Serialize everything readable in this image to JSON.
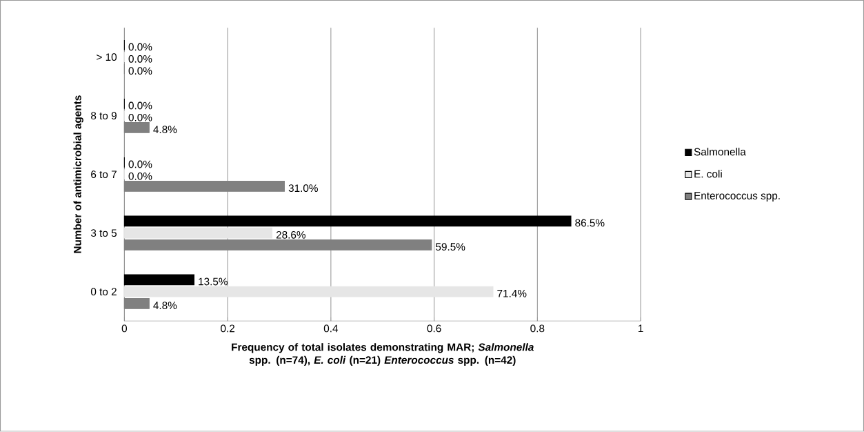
{
  "chart_data": {
    "type": "bar",
    "orientation": "horizontal",
    "categories": [
      "> 10",
      "8 to 9",
      "6 to 7",
      "3 to 5",
      "0 to 2"
    ],
    "series": [
      {
        "name": "Salmonella",
        "color": "#000000",
        "values": [
          0,
          0,
          0,
          0.865,
          0.135
        ],
        "value_labels": [
          "0.0%",
          "0.0%",
          "0.0%",
          "86.5%",
          "13.5%"
        ]
      },
      {
        "name": "E. coli",
        "color": "#e6e6e6",
        "values": [
          0,
          0,
          0,
          0.286,
          0.714
        ],
        "value_labels": [
          "0.0%",
          "0.0%",
          "0.0%",
          "28.6%",
          "71.4%"
        ]
      },
      {
        "name": "Enterococcus spp.",
        "color": "#808080",
        "values": [
          0,
          0.048,
          0.31,
          0.595,
          0.048
        ],
        "value_labels": [
          "0.0%",
          "4.8%",
          "31.0%",
          "59.5%",
          "4.8%"
        ]
      }
    ],
    "xlim": [
      0,
      1
    ],
    "xticks": [
      0,
      0.2,
      0.4,
      0.6,
      0.8,
      1
    ],
    "xlabel": "**Frequency of total isolates demonstrating MAR; *Salmonella* spp. (n=74), *E. coli* (n=21) *Enterococcus* spp.  (n=42)**",
    "ylabel": "Number of antimicrobial agents",
    "grid": "x",
    "legend": "right"
  }
}
